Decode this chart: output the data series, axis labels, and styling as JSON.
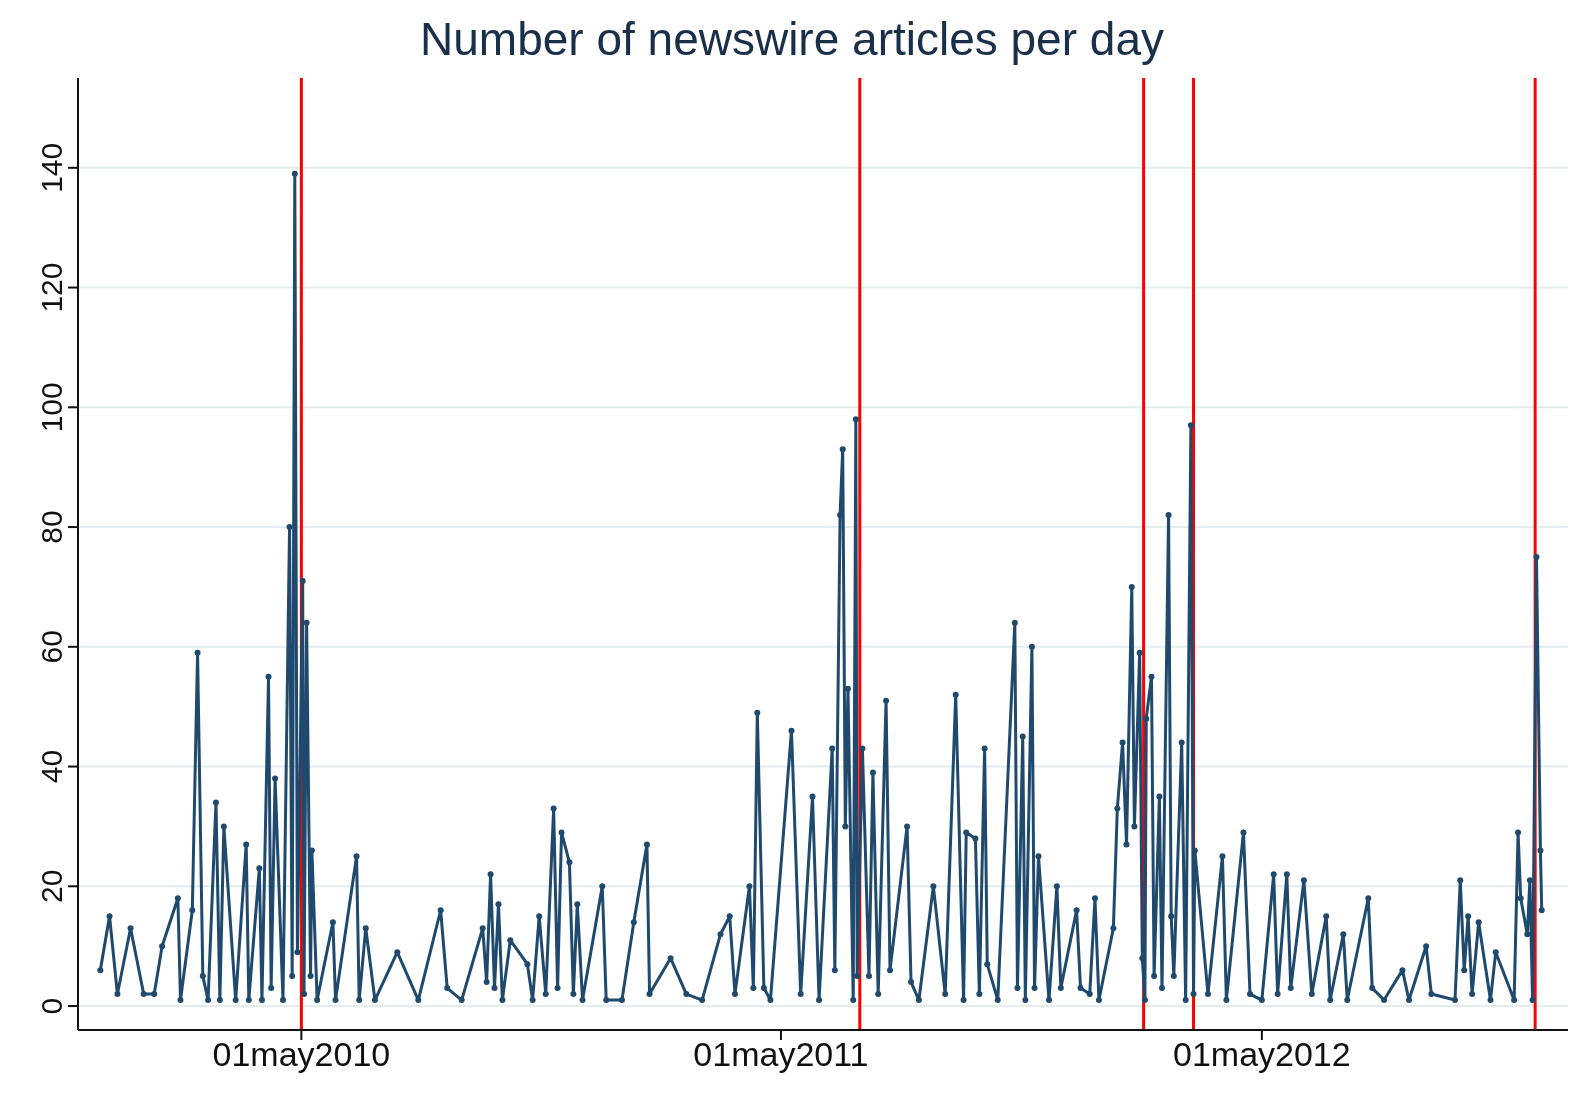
{
  "chart_data": {
    "type": "line",
    "title": "Number of newswire articles per day",
    "xlim": [
      "2009-11-12",
      "2012-12-20"
    ],
    "xticks": [
      {
        "value": "2010-05-01",
        "label": "01may2010"
      },
      {
        "value": "2011-05-01",
        "label": "01may2011"
      },
      {
        "value": "2012-05-01",
        "label": "01may2012"
      }
    ],
    "ylim": [
      -4,
      155
    ],
    "yticks": [
      0,
      20,
      40,
      60,
      80,
      100,
      120,
      140
    ],
    "grid": "y",
    "marker": "circle",
    "line_style": "solid",
    "ref_lines": [
      {
        "axis": "x",
        "value": "2010-05-01",
        "color": "#ff0000"
      },
      {
        "axis": "x",
        "value": "2011-06-30",
        "color": "#ff0000"
      },
      {
        "axis": "x",
        "value": "2012-02-01",
        "color": "#ff0000"
      },
      {
        "axis": "x",
        "value": "2012-03-10",
        "color": "#ff0000"
      },
      {
        "axis": "x",
        "value": "2012-11-25",
        "color": "#ff0000"
      }
    ],
    "x": [
      "2009-11-29",
      "2009-12-06",
      "2009-12-12",
      "2009-12-22",
      "2010-01-01",
      "2010-01-09",
      "2010-01-15",
      "2010-01-27",
      "2010-01-29",
      "2010-02-07",
      "2010-02-11",
      "2010-02-15",
      "2010-02-19",
      "2010-02-25",
      "2010-02-28",
      "2010-03-03",
      "2010-03-12",
      "2010-03-20",
      "2010-03-22",
      "2010-03-30",
      "2010-04-01",
      "2010-04-06",
      "2010-04-08",
      "2010-04-11",
      "2010-04-17",
      "2010-04-22",
      "2010-04-24",
      "2010-04-26",
      "2010-04-28",
      "2010-05-02",
      "2010-05-03",
      "2010-05-05",
      "2010-05-08",
      "2010-05-09",
      "2010-05-13",
      "2010-05-25",
      "2010-05-27",
      "2010-06-12",
      "2010-06-14",
      "2010-06-19",
      "2010-06-26",
      "2010-07-13",
      "2010-07-29",
      "2010-08-15",
      "2010-08-20",
      "2010-08-31",
      "2010-09-16",
      "2010-09-19",
      "2010-09-22",
      "2010-09-25",
      "2010-09-28",
      "2010-10-01",
      "2010-10-07",
      "2010-10-20",
      "2010-10-24",
      "2010-10-29",
      "2010-11-03",
      "2010-11-09",
      "2010-11-12",
      "2010-11-15",
      "2010-11-21",
      "2010-11-24",
      "2010-11-27",
      "2010-12-01",
      "2010-12-16",
      "2010-12-19",
      "2010-12-31",
      "2011-01-09",
      "2011-01-19",
      "2011-01-21",
      "2011-02-06",
      "2011-02-18",
      "2011-03-02",
      "2011-03-16",
      "2011-03-23",
      "2011-03-27",
      "2011-04-07",
      "2011-04-10",
      "2011-04-13",
      "2011-04-18",
      "2011-04-23",
      "2011-05-09",
      "2011-05-16",
      "2011-05-25",
      "2011-05-30",
      "2011-06-09",
      "2011-06-11",
      "2011-06-15",
      "2011-06-17",
      "2011-06-19",
      "2011-06-21",
      "2011-06-25",
      "2011-06-27",
      "2011-06-28",
      "2011-07-02",
      "2011-07-07",
      "2011-07-10",
      "2011-07-14",
      "2011-07-20",
      "2011-07-23",
      "2011-08-05",
      "2011-08-08",
      "2011-08-14",
      "2011-08-25",
      "2011-09-03",
      "2011-09-11",
      "2011-09-17",
      "2011-09-19",
      "2011-09-26",
      "2011-09-29",
      "2011-10-03",
      "2011-10-05",
      "2011-10-13",
      "2011-10-26",
      "2011-10-28",
      "2011-11-01",
      "2011-11-03",
      "2011-11-08",
      "2011-11-10",
      "2011-11-13",
      "2011-11-21",
      "2011-11-27",
      "2011-11-30",
      "2011-12-12",
      "2011-12-15",
      "2011-12-22",
      "2011-12-26",
      "2011-12-29",
      "2012-01-09",
      "2012-01-12",
      "2012-01-16",
      "2012-01-19",
      "2012-01-23",
      "2012-01-25",
      "2012-01-29",
      "2012-01-31",
      "2012-02-02",
      "2012-02-03",
      "2012-02-07",
      "2012-02-09",
      "2012-02-13",
      "2012-02-15",
      "2012-02-20",
      "2012-02-22",
      "2012-02-24",
      "2012-03-01",
      "2012-03-04",
      "2012-03-08",
      "2012-03-10",
      "2012-03-11",
      "2012-03-21",
      "2012-04-01",
      "2012-04-04",
      "2012-04-17",
      "2012-04-22",
      "2012-05-01",
      "2012-05-10",
      "2012-05-13",
      "2012-05-20",
      "2012-05-23",
      "2012-06-02",
      "2012-06-08",
      "2012-06-19",
      "2012-06-22",
      "2012-07-02",
      "2012-07-05",
      "2012-07-21",
      "2012-07-24",
      "2012-08-02",
      "2012-08-16",
      "2012-08-21",
      "2012-09-03",
      "2012-09-07",
      "2012-09-25",
      "2012-09-29",
      "2012-10-02",
      "2012-10-05",
      "2012-10-08",
      "2012-10-13",
      "2012-10-22",
      "2012-10-26",
      "2012-11-09",
      "2012-11-12",
      "2012-11-14",
      "2012-11-19",
      "2012-11-21",
      "2012-11-23",
      "2012-11-26",
      "2012-11-29",
      "2012-11-30"
    ],
    "series": [
      {
        "color": "#1f4a6e",
        "values": [
          6,
          15,
          2,
          13,
          2,
          2,
          10,
          18,
          1,
          16,
          59,
          5,
          1,
          34,
          1,
          30,
          1,
          27,
          1,
          23,
          1,
          55,
          3,
          38,
          1,
          80,
          5,
          139,
          9,
          71,
          2,
          64,
          5,
          26,
          1,
          14,
          1,
          25,
          1,
          13,
          1,
          9,
          1,
          16,
          3,
          1,
          13,
          4,
          22,
          3,
          17,
          1,
          11,
          7,
          1,
          15,
          2,
          33,
          3,
          29,
          24,
          2,
          17,
          1,
          20,
          1,
          1,
          14,
          27,
          2,
          8,
          2,
          1,
          12,
          15,
          2,
          20,
          3,
          49,
          3,
          1,
          46,
          2,
          35,
          1,
          43,
          6,
          82,
          93,
          30,
          53,
          1,
          98,
          5,
          43,
          5,
          39,
          2,
          51,
          6,
          30,
          4,
          1,
          20,
          2,
          52,
          1,
          29,
          28,
          2,
          43,
          7,
          1,
          64,
          3,
          45,
          1,
          60,
          3,
          25,
          1,
          20,
          3,
          16,
          3,
          2,
          18,
          1,
          13,
          33,
          44,
          27,
          70,
          30,
          59,
          8,
          1,
          48,
          55,
          5,
          35,
          3,
          82,
          15,
          5,
          44,
          1,
          97,
          2,
          26,
          2,
          25,
          1,
          29,
          2,
          1,
          22,
          2,
          22,
          3,
          21,
          2,
          15,
          1,
          12,
          1,
          18,
          3,
          1,
          6,
          1,
          10,
          2,
          1,
          21,
          6,
          15,
          2,
          14,
          1,
          9,
          1,
          29,
          18,
          12,
          21,
          1,
          75,
          26,
          16
        ]
      }
    ]
  }
}
